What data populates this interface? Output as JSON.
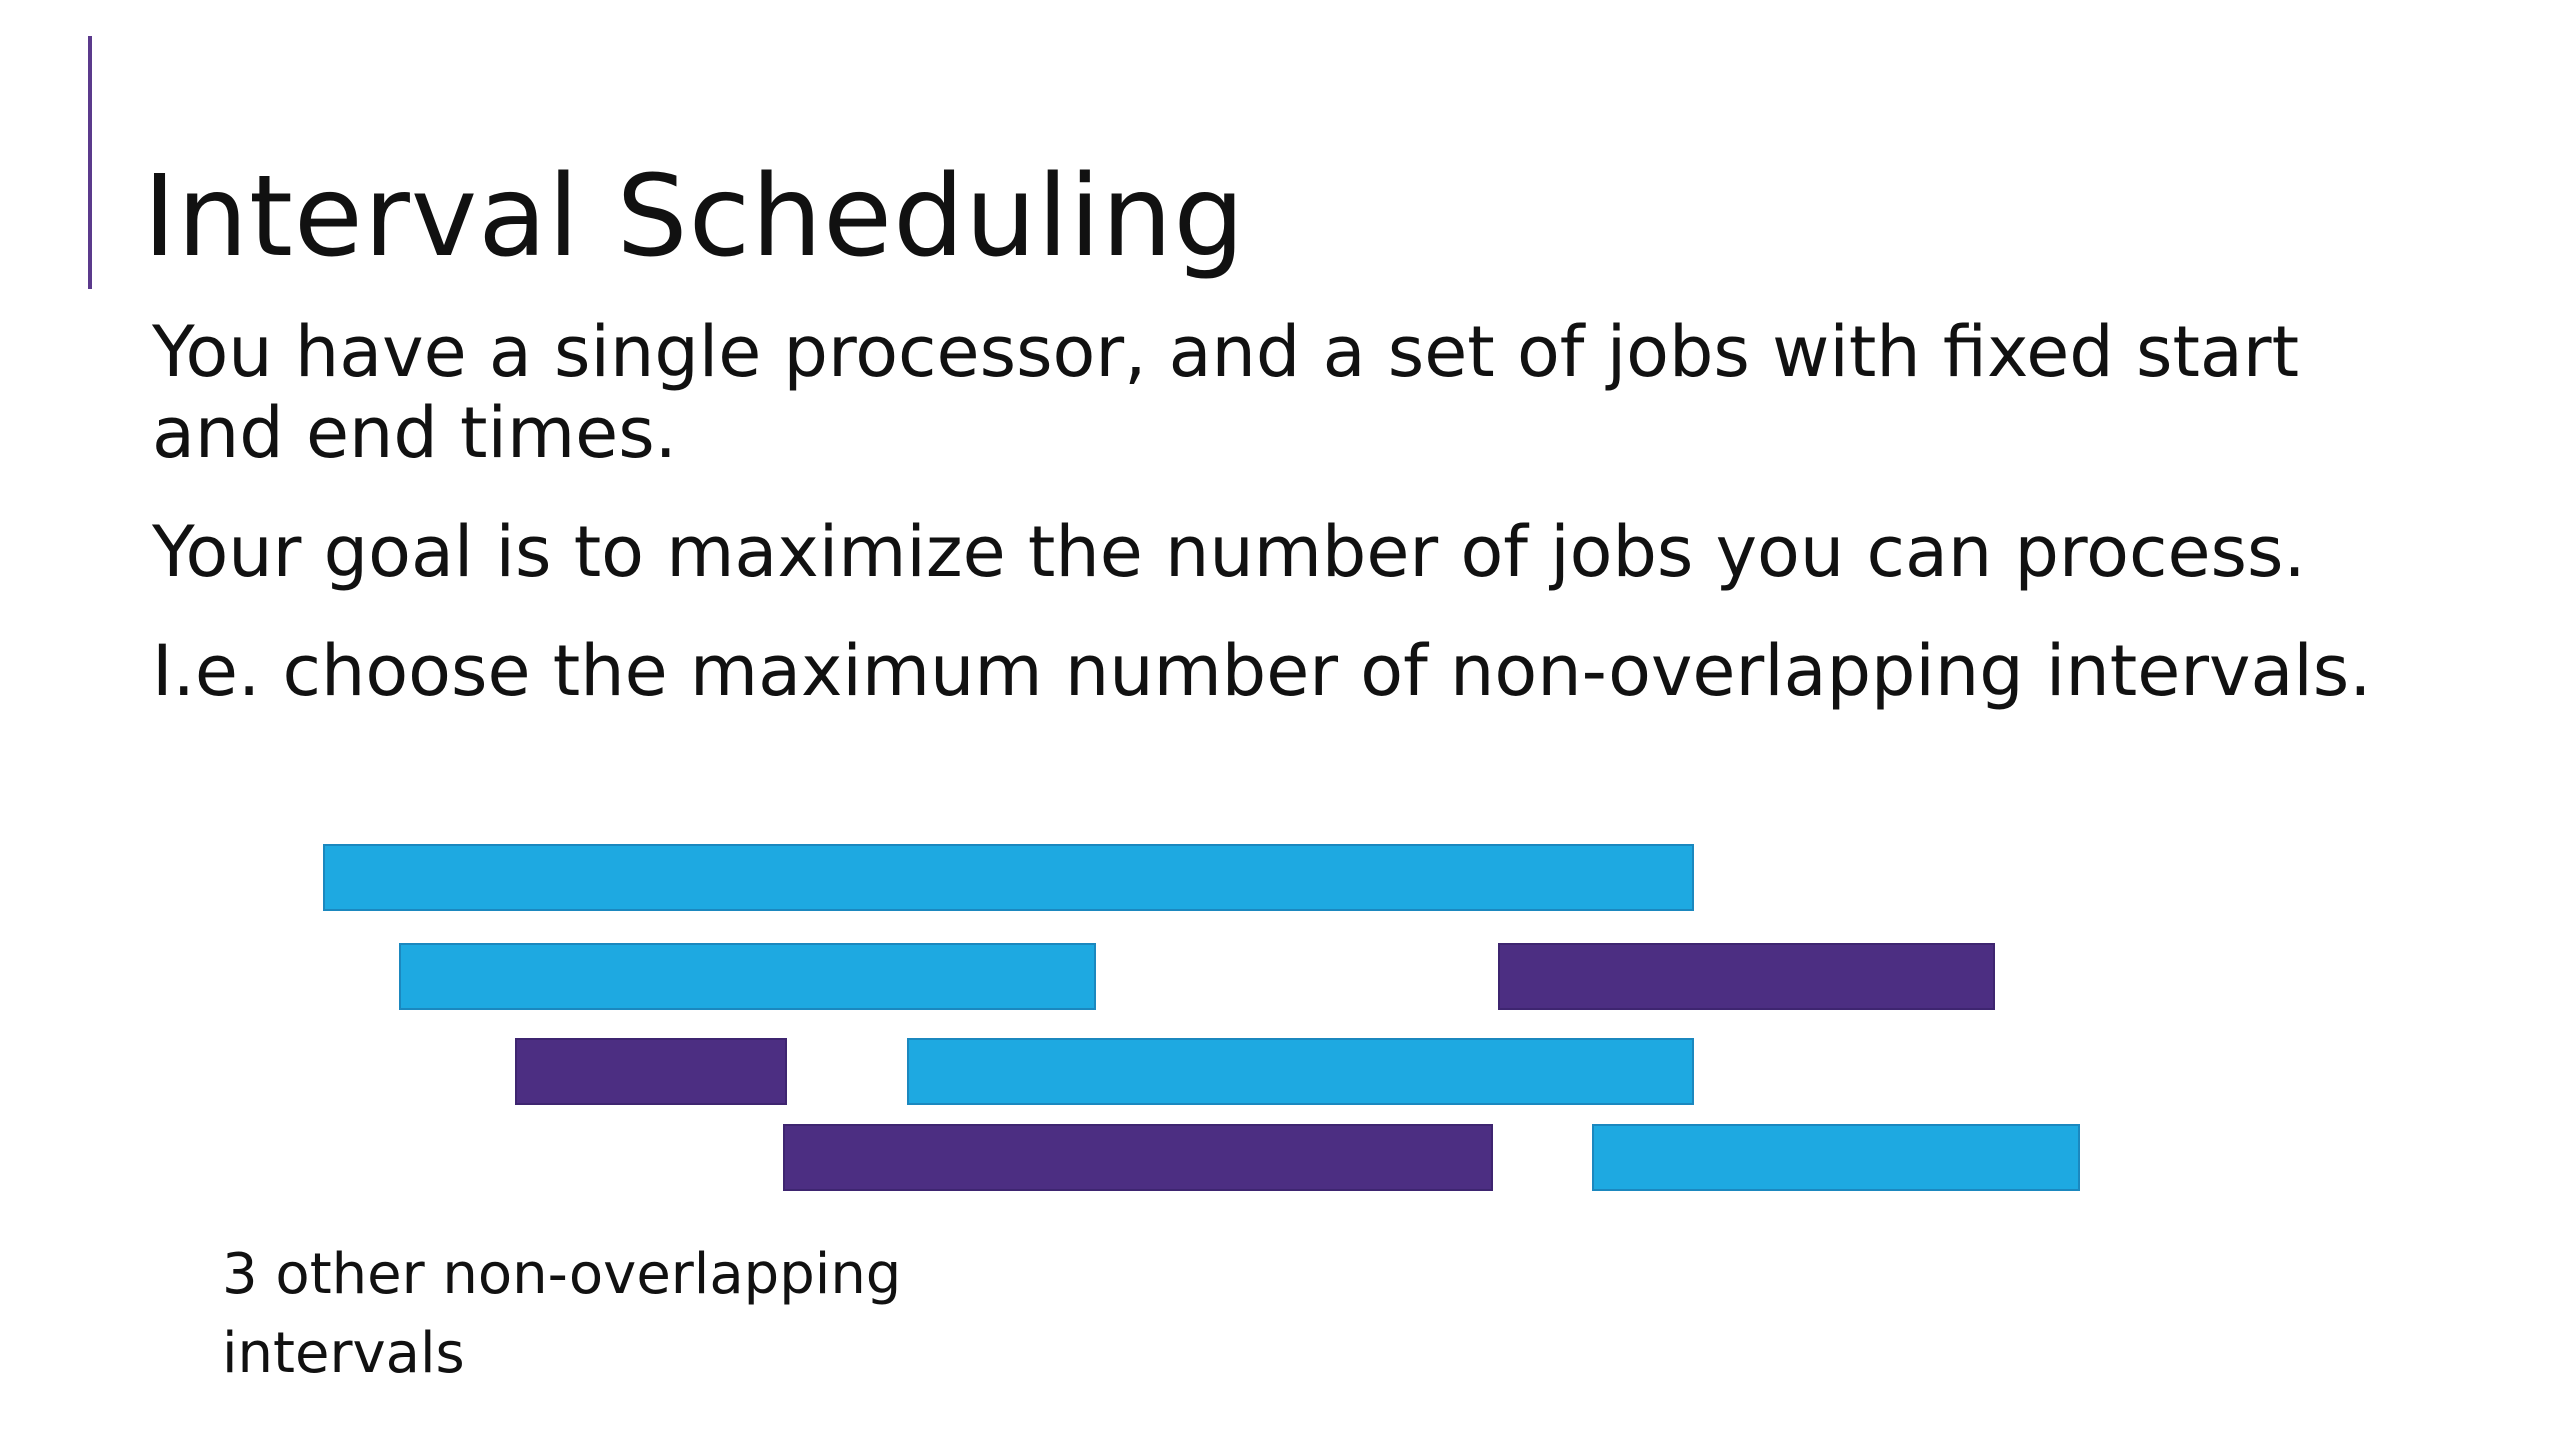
{
  "slide": {
    "title": "Interval Scheduling",
    "paragraphs": [
      "You have a single processor, and a set of jobs with fixed start and end times.",
      "Your goal is to maximize the number of jobs you can process.",
      "I.e. choose the maximum number of non-overlapping intervals."
    ],
    "caption": "3 other non-overlapping intervals"
  },
  "colors": {
    "accent": "#5b3a8c",
    "interval_blue": "#1ea9e1",
    "interval_purple": "#4c2e82"
  },
  "intervals": [
    {
      "row": 1,
      "color": "blue"
    },
    {
      "row": 2,
      "color": "blue"
    },
    {
      "row": 2,
      "color": "purple"
    },
    {
      "row": 3,
      "color": "purple"
    },
    {
      "row": 3,
      "color": "blue"
    },
    {
      "row": 4,
      "color": "purple"
    },
    {
      "row": 4,
      "color": "blue"
    }
  ]
}
